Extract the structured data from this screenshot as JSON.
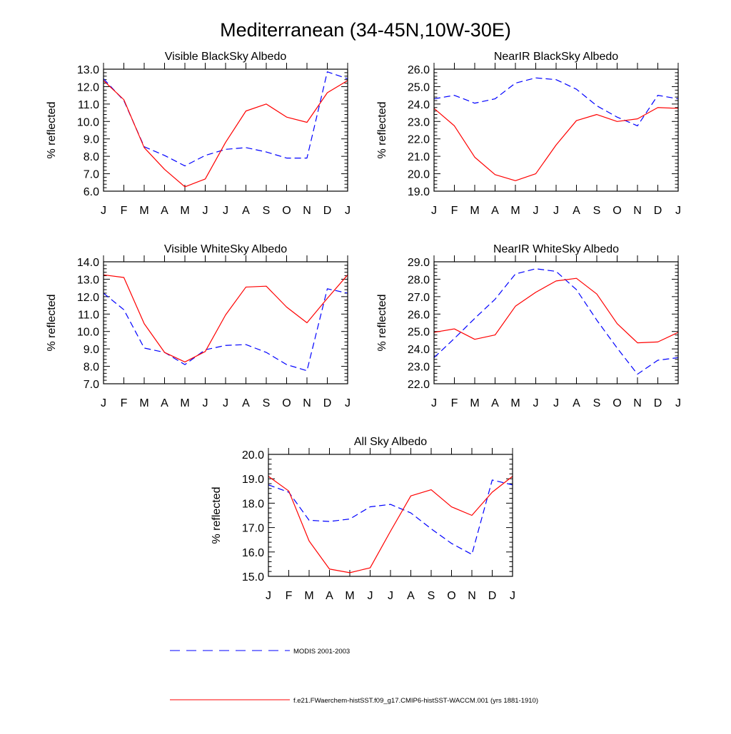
{
  "title": "Mediterranean (34-45N,10W-30E)",
  "colors": {
    "model": "#ff0000",
    "obs": "#0000ff",
    "axis": "#000000"
  },
  "legend": {
    "obs_label": "MODIS 2001-2003",
    "model_label": "f.e21.FWaerchem-histSST.f09_g17.CMIP6-histSST-WACCM.001 (yrs 1881-1910)"
  },
  "chart_data": [
    {
      "type": "line",
      "title": "Visible BlackSky Albedo",
      "ylabel": "% reflected",
      "categories": [
        "J",
        "F",
        "M",
        "A",
        "M",
        "J",
        "J",
        "A",
        "S",
        "O",
        "N",
        "D",
        "J"
      ],
      "ylim": [
        6.0,
        13.0
      ],
      "yticks": [
        "6.0",
        "7.0",
        "8.0",
        "9.0",
        "10.0",
        "11.0",
        "12.0",
        "13.0"
      ],
      "series": [
        {
          "name": "MODIS 2001-2003",
          "style": "dashed",
          "values": [
            12.45,
            11.2,
            8.55,
            8.05,
            7.45,
            8.05,
            8.4,
            8.5,
            8.25,
            7.9,
            7.9,
            12.85,
            12.45
          ]
        },
        {
          "name": "f.e21.FWaerchem-histSST.f09_g17.CMIP6-histSST-WACCM.001 (yrs 1881-1910)",
          "style": "solid",
          "values": [
            12.35,
            11.25,
            8.5,
            7.25,
            6.25,
            6.7,
            8.8,
            10.6,
            11.0,
            10.25,
            9.95,
            11.65,
            12.35
          ]
        }
      ]
    },
    {
      "type": "line",
      "title": "NearIR BlackSky Albedo",
      "ylabel": "% reflected",
      "categories": [
        "J",
        "F",
        "M",
        "A",
        "M",
        "J",
        "J",
        "A",
        "S",
        "O",
        "N",
        "D",
        "J"
      ],
      "ylim": [
        19.0,
        26.0
      ],
      "yticks": [
        "19.0",
        "20.0",
        "21.0",
        "22.0",
        "23.0",
        "24.0",
        "25.0",
        "26.0"
      ],
      "series": [
        {
          "name": "MODIS 2001-2003",
          "style": "dashed",
          "values": [
            24.3,
            24.5,
            24.05,
            24.3,
            25.2,
            25.5,
            25.4,
            24.85,
            23.9,
            23.25,
            22.75,
            24.5,
            24.3
          ]
        },
        {
          "name": "f.e21.FWaerchem-histSST.f09_g17.CMIP6-histSST-WACCM.001 (yrs 1881-1910)",
          "style": "solid",
          "values": [
            23.75,
            22.75,
            20.95,
            19.95,
            19.6,
            20.0,
            21.65,
            23.05,
            23.4,
            23.0,
            23.15,
            23.8,
            23.75
          ]
        }
      ]
    },
    {
      "type": "line",
      "title": "Visible WhiteSky Albedo",
      "ylabel": "% reflected",
      "categories": [
        "J",
        "F",
        "M",
        "A",
        "M",
        "J",
        "J",
        "A",
        "S",
        "O",
        "N",
        "D",
        "J"
      ],
      "ylim": [
        7.0,
        14.0
      ],
      "yticks": [
        "7.0",
        "8.0",
        "9.0",
        "10.0",
        "11.0",
        "12.0",
        "13.0",
        "14.0"
      ],
      "series": [
        {
          "name": "MODIS 2001-2003",
          "style": "dashed",
          "values": [
            12.2,
            11.25,
            9.05,
            8.8,
            8.1,
            8.95,
            9.2,
            9.25,
            8.8,
            8.1,
            7.75,
            12.45,
            12.2
          ]
        },
        {
          "name": "f.e21.FWaerchem-histSST.f09_g17.CMIP6-histSST-WACCM.001 (yrs 1881-1910)",
          "style": "solid",
          "values": [
            13.25,
            13.1,
            10.45,
            8.8,
            8.25,
            8.85,
            10.95,
            12.55,
            12.6,
            11.4,
            10.5,
            11.9,
            13.25
          ]
        }
      ]
    },
    {
      "type": "line",
      "title": "NearIR WhiteSky Albedo",
      "ylabel": "% reflected",
      "categories": [
        "J",
        "F",
        "M",
        "A",
        "M",
        "J",
        "J",
        "A",
        "S",
        "O",
        "N",
        "D",
        "J"
      ],
      "ylim": [
        22.0,
        29.0
      ],
      "yticks": [
        "22.0",
        "23.0",
        "24.0",
        "25.0",
        "26.0",
        "27.0",
        "28.0",
        "29.0"
      ],
      "series": [
        {
          "name": "MODIS 2001-2003",
          "style": "dashed",
          "values": [
            23.5,
            24.6,
            25.75,
            26.85,
            28.3,
            28.6,
            28.45,
            27.4,
            25.65,
            24.05,
            22.55,
            23.35,
            23.5
          ]
        },
        {
          "name": "f.e21.FWaerchem-histSST.f09_g17.CMIP6-histSST-WACCM.001 (yrs 1881-1910)",
          "style": "solid",
          "values": [
            24.95,
            25.15,
            24.55,
            24.8,
            26.45,
            27.25,
            27.9,
            28.05,
            27.15,
            25.45,
            24.35,
            24.4,
            24.95
          ]
        }
      ]
    },
    {
      "type": "line",
      "title": "All Sky Albedo",
      "ylabel": "% reflected",
      "categories": [
        "J",
        "F",
        "M",
        "A",
        "M",
        "J",
        "J",
        "A",
        "S",
        "O",
        "N",
        "D",
        "J"
      ],
      "ylim": [
        15.0,
        20.0
      ],
      "yticks": [
        "15.0",
        "16.0",
        "17.0",
        "18.0",
        "19.0",
        "20.0"
      ],
      "series": [
        {
          "name": "MODIS 2001-2003",
          "style": "dashed",
          "values": [
            18.75,
            18.45,
            17.3,
            17.25,
            17.35,
            17.85,
            17.95,
            17.6,
            16.95,
            16.35,
            15.9,
            18.95,
            18.75
          ]
        },
        {
          "name": "f.e21.FWaerchem-histSST.f09_g17.CMIP6-histSST-WACCM.001 (yrs 1881-1910)",
          "style": "solid",
          "values": [
            19.1,
            18.5,
            16.45,
            15.3,
            15.15,
            15.35,
            16.85,
            18.3,
            18.55,
            17.85,
            17.5,
            18.45,
            19.1
          ]
        }
      ]
    }
  ]
}
